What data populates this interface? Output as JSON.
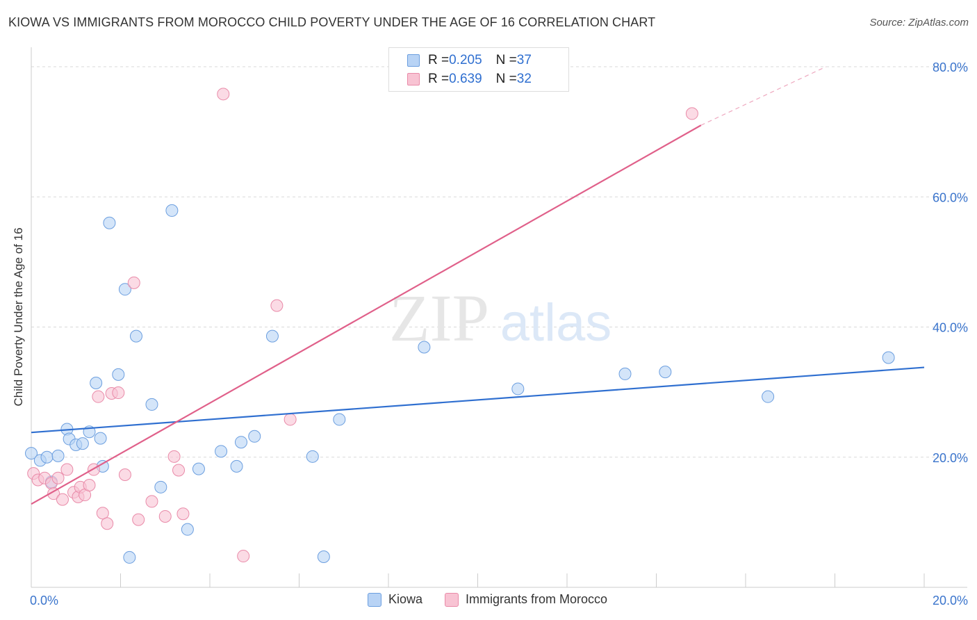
{
  "header": {
    "title": "KIOWA VS IMMIGRANTS FROM MOROCCO CHILD POVERTY UNDER THE AGE OF 16 CORRELATION CHART",
    "source": "Source: ZipAtlas.com"
  },
  "watermark": {
    "zip": "ZIP",
    "atlas": "atlas"
  },
  "colors": {
    "kiowa_fill": "#b8d3f5",
    "kiowa_stroke": "#6b9edf",
    "kiowa_line": "#2f6fd0",
    "morocco_fill": "#f8c3d3",
    "morocco_stroke": "#e98aa8",
    "morocco_line": "#e0608a",
    "axis_text": "#3a74cc",
    "grid": "#d9d9d9"
  },
  "legend": {
    "rows": [
      {
        "r_label": "R = ",
        "r_value": "0.205",
        "n_label": "N = ",
        "n_value": "37"
      },
      {
        "r_label": "R = ",
        "r_value": "0.639",
        "n_label": "N = ",
        "n_value": "32"
      }
    ]
  },
  "chart_data": {
    "type": "scatter",
    "title": "KIOWA VS IMMIGRANTS FROM MOROCCO CHILD POVERTY UNDER THE AGE OF 16 CORRELATION CHART",
    "xlabel": "",
    "ylabel": "Child Poverty Under the Age of 16",
    "xlim": [
      0,
      20
    ],
    "ylim": [
      0,
      80
    ],
    "x_tick_labels": [
      "0.0%",
      "20.0%"
    ],
    "y_ticks": [
      20,
      40,
      60,
      80
    ],
    "y_tick_labels": [
      "20.0%",
      "40.0%",
      "60.0%",
      "80.0%"
    ],
    "grid": true,
    "legend_position": "top-center",
    "series": [
      {
        "name": "Kiowa",
        "points": [
          {
            "x": 0.0,
            "y": 20.6
          },
          {
            "x": 0.2,
            "y": 19.5
          },
          {
            "x": 0.35,
            "y": 20.0
          },
          {
            "x": 0.45,
            "y": 16.2
          },
          {
            "x": 0.6,
            "y": 20.2
          },
          {
            "x": 0.8,
            "y": 24.3
          },
          {
            "x": 0.85,
            "y": 22.8
          },
          {
            "x": 1.0,
            "y": 21.9
          },
          {
            "x": 1.15,
            "y": 22.1
          },
          {
            "x": 1.3,
            "y": 23.9
          },
          {
            "x": 1.45,
            "y": 31.4
          },
          {
            "x": 1.55,
            "y": 22.9
          },
          {
            "x": 1.6,
            "y": 18.6
          },
          {
            "x": 1.75,
            "y": 56.0
          },
          {
            "x": 1.95,
            "y": 32.7
          },
          {
            "x": 2.1,
            "y": 45.8
          },
          {
            "x": 2.2,
            "y": 4.6
          },
          {
            "x": 2.35,
            "y": 38.6
          },
          {
            "x": 2.7,
            "y": 28.1
          },
          {
            "x": 2.9,
            "y": 15.4
          },
          {
            "x": 3.15,
            "y": 57.9
          },
          {
            "x": 3.5,
            "y": 8.9
          },
          {
            "x": 3.75,
            "y": 18.2
          },
          {
            "x": 4.25,
            "y": 20.9
          },
          {
            "x": 4.6,
            "y": 18.6
          },
          {
            "x": 4.7,
            "y": 22.3
          },
          {
            "x": 5.0,
            "y": 23.2
          },
          {
            "x": 5.4,
            "y": 38.6
          },
          {
            "x": 6.3,
            "y": 20.1
          },
          {
            "x": 6.55,
            "y": 4.7
          },
          {
            "x": 6.9,
            "y": 25.8
          },
          {
            "x": 8.8,
            "y": 36.9
          },
          {
            "x": 10.9,
            "y": 30.5
          },
          {
            "x": 13.3,
            "y": 32.8
          },
          {
            "x": 14.2,
            "y": 33.1
          },
          {
            "x": 16.5,
            "y": 29.3
          },
          {
            "x": 19.2,
            "y": 35.3
          }
        ],
        "trend": {
          "x": [
            0,
            20
          ],
          "y": [
            23.8,
            33.8
          ]
        }
      },
      {
        "name": "Immigrants from Morocco",
        "points": [
          {
            "x": 0.05,
            "y": 17.5
          },
          {
            "x": 0.15,
            "y": 16.5
          },
          {
            "x": 0.3,
            "y": 16.8
          },
          {
            "x": 0.45,
            "y": 16.0
          },
          {
            "x": 0.5,
            "y": 14.4
          },
          {
            "x": 0.6,
            "y": 16.8
          },
          {
            "x": 0.7,
            "y": 13.5
          },
          {
            "x": 0.8,
            "y": 18.1
          },
          {
            "x": 0.95,
            "y": 14.6
          },
          {
            "x": 1.05,
            "y": 13.9
          },
          {
            "x": 1.1,
            "y": 15.4
          },
          {
            "x": 1.2,
            "y": 14.2
          },
          {
            "x": 1.3,
            "y": 15.7
          },
          {
            "x": 1.4,
            "y": 18.1
          },
          {
            "x": 1.5,
            "y": 29.3
          },
          {
            "x": 1.6,
            "y": 11.4
          },
          {
            "x": 1.7,
            "y": 9.8
          },
          {
            "x": 1.8,
            "y": 29.8
          },
          {
            "x": 1.95,
            "y": 29.9
          },
          {
            "x": 2.1,
            "y": 17.3
          },
          {
            "x": 2.4,
            "y": 10.4
          },
          {
            "x": 2.3,
            "y": 46.8
          },
          {
            "x": 2.7,
            "y": 13.2
          },
          {
            "x": 3.0,
            "y": 10.9
          },
          {
            "x": 3.2,
            "y": 20.1
          },
          {
            "x": 3.3,
            "y": 18.0
          },
          {
            "x": 3.4,
            "y": 11.3
          },
          {
            "x": 4.3,
            "y": 75.8
          },
          {
            "x": 4.75,
            "y": 4.8
          },
          {
            "x": 5.5,
            "y": 43.3
          },
          {
            "x": 5.8,
            "y": 25.8
          },
          {
            "x": 14.8,
            "y": 72.8
          }
        ],
        "trend": {
          "x": [
            0,
            15
          ],
          "y": [
            12.8,
            71.0
          ]
        },
        "trend_dashed": {
          "x": [
            15,
            17.8
          ],
          "y": [
            71.0,
            80.0
          ]
        }
      }
    ]
  },
  "bottom_legend": {
    "items": [
      "Kiowa",
      "Immigrants from Morocco"
    ]
  }
}
